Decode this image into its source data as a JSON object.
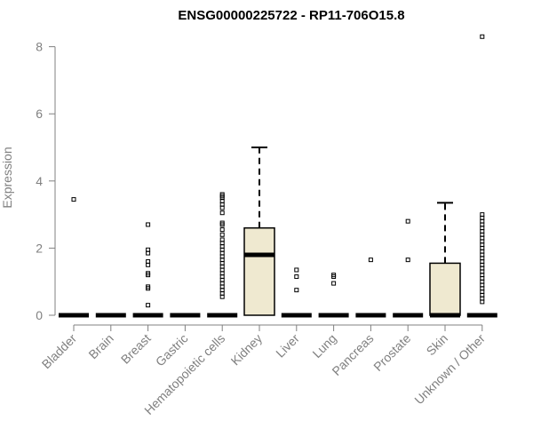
{
  "chart_data": {
    "type": "box",
    "title": "ENSG00000225722 - RP11-706O15.8",
    "xlabel": "",
    "ylabel": "Expression",
    "ylim": [
      0,
      8.5
    ],
    "yticks": [
      0,
      2,
      4,
      6,
      8
    ],
    "grid": false,
    "colors": {
      "box_fill": "#efe9d0",
      "stroke": "#000000",
      "axis": "#808080"
    },
    "categories": [
      "Bladder",
      "Brain",
      "Breast",
      "Gastric",
      "Hematopoietic cells",
      "Kidney",
      "Liver",
      "Lung",
      "Pancreas",
      "Prostate",
      "Skin",
      "Unknown / Other"
    ],
    "boxes": [
      {
        "category": "Bladder",
        "q1": 0,
        "median": 0,
        "q3": 0,
        "whisker_low": 0,
        "whisker_high": 0,
        "outliers": [
          3.45
        ]
      },
      {
        "category": "Brain",
        "q1": 0,
        "median": 0,
        "q3": 0,
        "whisker_low": 0,
        "whisker_high": 0,
        "outliers": []
      },
      {
        "category": "Breast",
        "q1": 0,
        "median": 0,
        "q3": 0,
        "whisker_low": 0,
        "whisker_high": 0,
        "outliers": [
          0.3,
          0.8,
          0.85,
          1.2,
          1.25,
          1.5,
          1.6,
          1.85,
          1.95,
          2.7
        ]
      },
      {
        "category": "Gastric",
        "q1": 0,
        "median": 0,
        "q3": 0,
        "whisker_low": 0,
        "whisker_high": 0,
        "outliers": []
      },
      {
        "category": "Hematopoietic cells",
        "q1": 0,
        "median": 0,
        "q3": 0,
        "whisker_low": 0,
        "whisker_high": 0,
        "outliers": [
          0.55,
          0.65,
          0.75,
          0.85,
          0.95,
          1.05,
          1.15,
          1.25,
          1.35,
          1.45,
          1.55,
          1.65,
          1.75,
          1.85,
          1.95,
          2.05,
          2.15,
          2.25,
          2.4,
          2.55,
          2.7,
          2.75,
          3.05,
          3.2,
          3.3,
          3.4,
          3.5,
          3.55,
          3.6
        ]
      },
      {
        "category": "Kidney",
        "q1": 0,
        "median": 1.8,
        "q3": 2.6,
        "whisker_low": 0,
        "whisker_high": 5.0,
        "outliers": []
      },
      {
        "category": "Liver",
        "q1": 0,
        "median": 0,
        "q3": 0,
        "whisker_low": 0,
        "whisker_high": 0,
        "outliers": [
          0.75,
          1.15,
          1.35
        ]
      },
      {
        "category": "Lung",
        "q1": 0,
        "median": 0,
        "q3": 0,
        "whisker_low": 0,
        "whisker_high": 0,
        "outliers": [
          0.95,
          1.15,
          1.2
        ]
      },
      {
        "category": "Pancreas",
        "q1": 0,
        "median": 0,
        "q3": 0,
        "whisker_low": 0,
        "whisker_high": 0,
        "outliers": [
          1.65
        ]
      },
      {
        "category": "Prostate",
        "q1": 0,
        "median": 0,
        "q3": 0,
        "whisker_low": 0,
        "whisker_high": 0,
        "outliers": [
          1.65,
          2.8
        ]
      },
      {
        "category": "Skin",
        "q1": 0,
        "median": 0,
        "q3": 1.55,
        "whisker_low": 0,
        "whisker_high": 3.35,
        "outliers": []
      },
      {
        "category": "Unknown / Other",
        "q1": 0,
        "median": 0,
        "q3": 0,
        "whisker_low": 0,
        "whisker_high": 0,
        "outliers": [
          0.4,
          0.5,
          0.6,
          0.7,
          0.8,
          0.9,
          1.0,
          1.1,
          1.2,
          1.3,
          1.4,
          1.5,
          1.6,
          1.7,
          1.8,
          1.9,
          2.0,
          2.1,
          2.2,
          2.3,
          2.4,
          2.5,
          2.6,
          2.7,
          2.8,
          2.9,
          3.0,
          8.3
        ]
      }
    ]
  }
}
